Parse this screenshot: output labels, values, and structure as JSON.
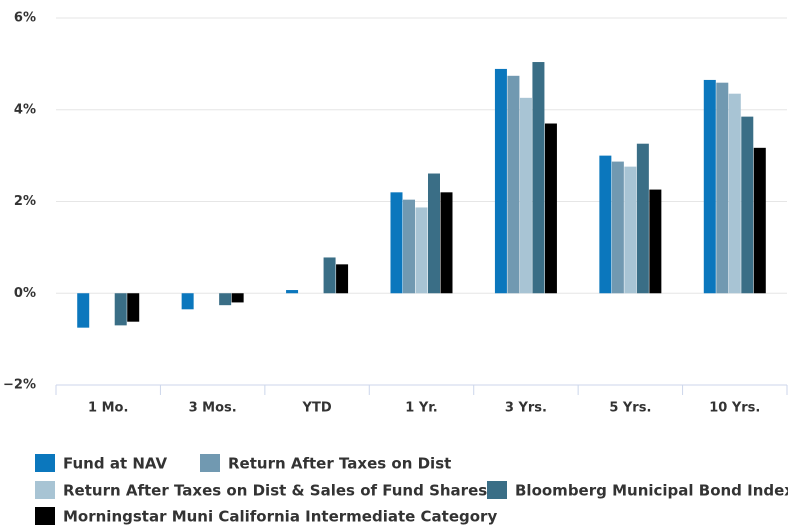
{
  "chart_data": {
    "type": "bar",
    "categories": [
      "1 Mo.",
      "3 Mos.",
      "YTD",
      "1 Yr.",
      "3 Yrs.",
      "5 Yrs.",
      "10 Yrs."
    ],
    "series": [
      {
        "name": "Fund at NAV",
        "color": "#0b77bd",
        "values": [
          -0.75,
          -0.35,
          0.07,
          2.2,
          4.89,
          3.0,
          4.65
        ]
      },
      {
        "name": "Return After Taxes on Dist",
        "color": "#7199b1",
        "values": [
          null,
          null,
          null,
          2.04,
          4.74,
          2.87,
          4.59
        ]
      },
      {
        "name": "Return After Taxes on Dist & Sales of Fund Shares",
        "color": "#a8c4d4",
        "values": [
          null,
          null,
          null,
          1.87,
          4.26,
          2.76,
          4.35
        ]
      },
      {
        "name": "Bloomberg Municipal Bond Index",
        "color": "#3a6e86",
        "values": [
          -0.7,
          -0.26,
          0.78,
          2.61,
          5.04,
          3.26,
          3.85
        ]
      },
      {
        "name": "Morningstar Muni California Intermediate Category",
        "color": "#000000",
        "values": [
          -0.62,
          -0.2,
          0.63,
          2.2,
          3.7,
          2.26,
          3.17
        ]
      }
    ],
    "ylim": [
      -2,
      6
    ],
    "yticks": [
      {
        "value": -2,
        "label": "−2%"
      },
      {
        "value": 0,
        "label": "0%"
      },
      {
        "value": 2,
        "label": "2%"
      },
      {
        "value": 4,
        "label": "4%"
      },
      {
        "value": 6,
        "label": "6%"
      }
    ],
    "grid": true,
    "legend": "bottom"
  }
}
